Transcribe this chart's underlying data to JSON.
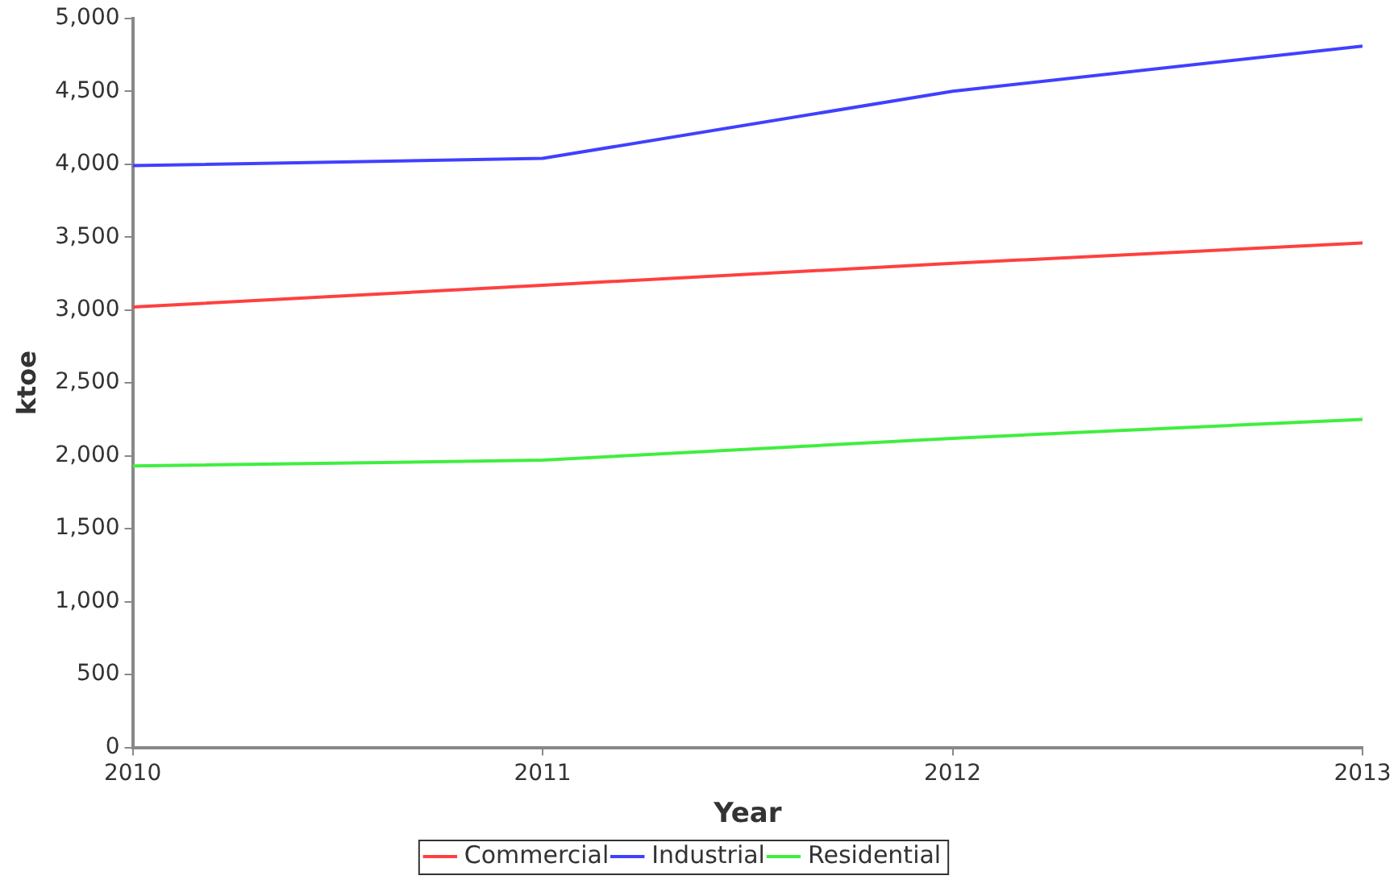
{
  "chart_data": {
    "type": "line",
    "xlabel": "Year",
    "ylabel": "ktoe",
    "x": [
      2010,
      2011,
      2012,
      2013
    ],
    "series": [
      {
        "name": "Commercial",
        "color": "#ff4040",
        "values": [
          3020,
          3170,
          3320,
          3460
        ]
      },
      {
        "name": "Industrial",
        "color": "#4040ff",
        "values": [
          3990,
          4040,
          4500,
          4810
        ]
      },
      {
        "name": "Residential",
        "color": "#40ee40",
        "values": [
          1930,
          1970,
          2120,
          2250
        ]
      }
    ],
    "xlim": [
      2010,
      2013
    ],
    "xticks": [
      2010,
      2011,
      2012,
      2013
    ],
    "ylim": [
      0,
      5000
    ],
    "yticks": [
      0,
      500,
      {
        "value": 1000,
        "label": "1,000"
      },
      {
        "value": 1500,
        "label": "1,500"
      },
      {
        "value": 2000,
        "label": "2,000"
      },
      {
        "value": 2500,
        "label": "2,500"
      },
      {
        "value": 3000,
        "label": "3,000"
      },
      {
        "value": 3500,
        "label": "3,500"
      },
      {
        "value": 4000,
        "label": "4,000"
      },
      {
        "value": 4500,
        "label": "4,500"
      },
      {
        "value": 5000,
        "label": "5,000"
      }
    ],
    "grid": false,
    "legend": "bottom",
    "marker": "none",
    "line_style": "solid"
  }
}
